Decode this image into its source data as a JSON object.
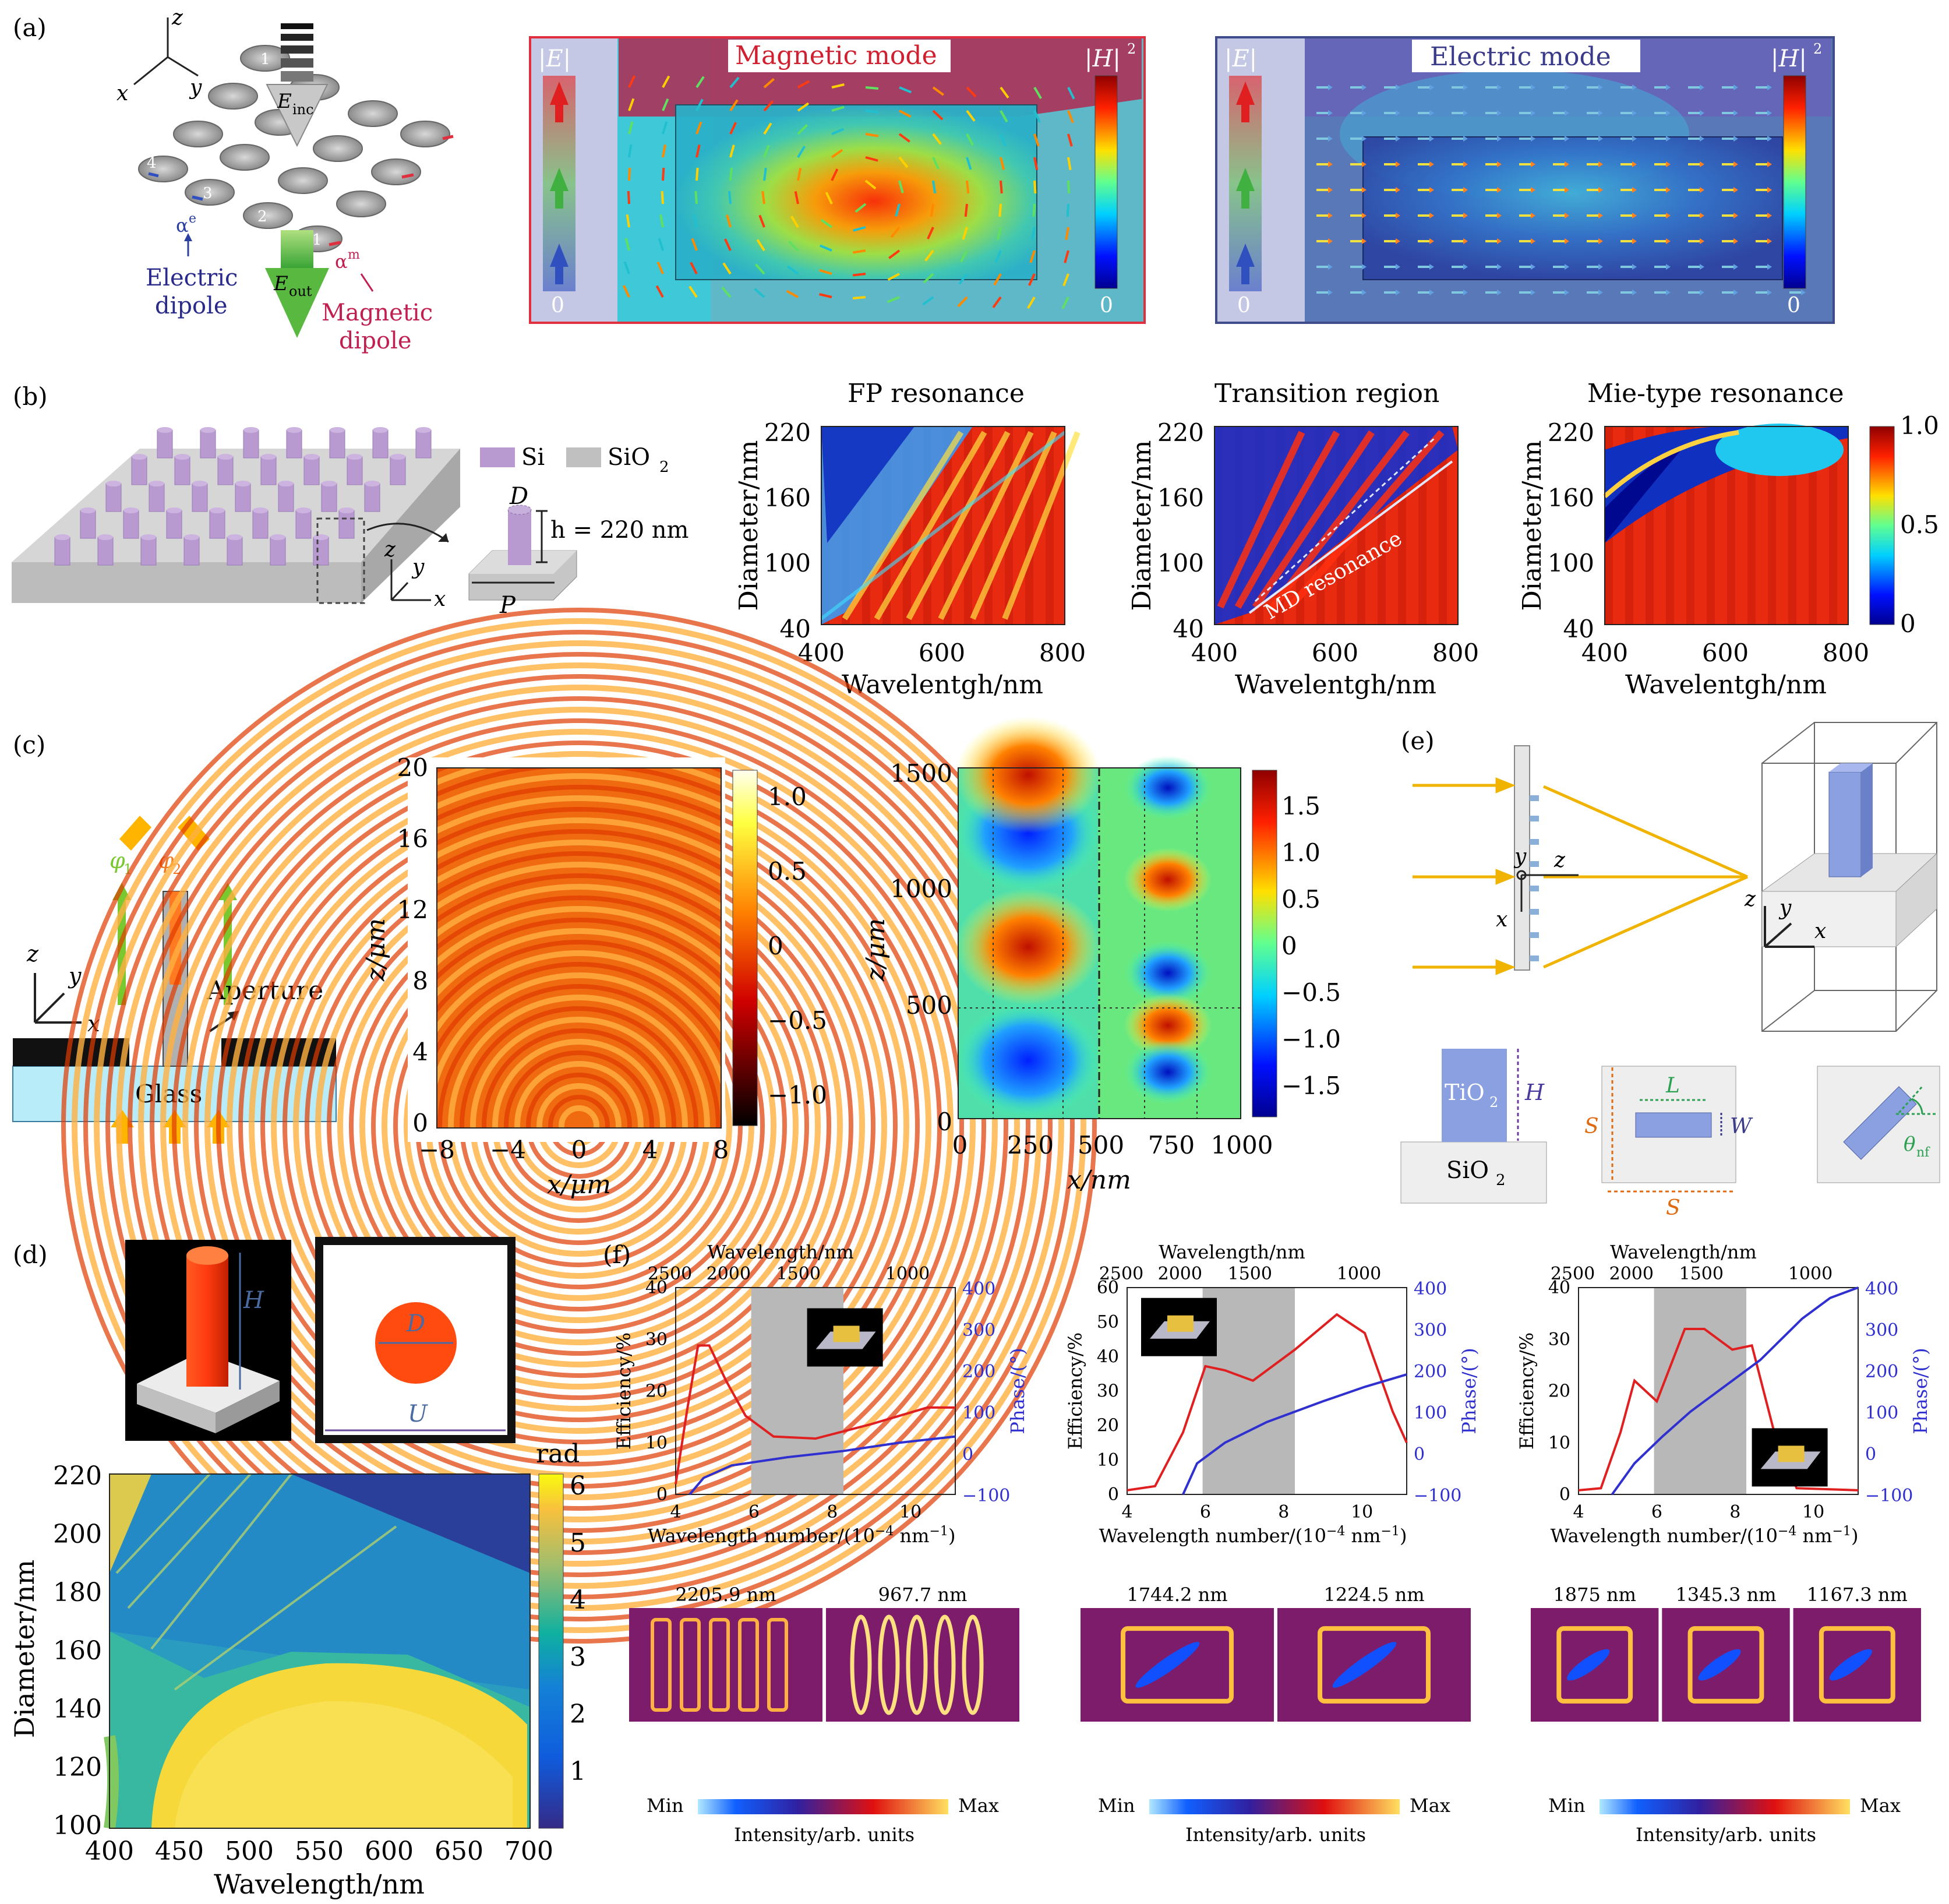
{
  "panel_labels": {
    "a": "(a)",
    "b": "(b)",
    "c": "(c)",
    "d": "(d)",
    "e": "(e)",
    "f": "(f)"
  },
  "a": {
    "axes": {
      "z": "z",
      "x": "x",
      "y": "y"
    },
    "einc": "E",
    "einc_sub": "inc",
    "eout": "E",
    "eout_sub": "out",
    "alpha_e": "α",
    "alpha_e_sup": "e",
    "alpha_m": "α",
    "alpha_m_sup": "m",
    "electric_dipole_1": "Electric",
    "electric_dipole_2": "dipole",
    "magnetic_dipole_1": "Magnetic",
    "magnetic_dipole_2": "dipole",
    "disk_numbers": [
      "1",
      "2",
      "3",
      "4",
      "1"
    ],
    "mode1_title": "Magnetic mode",
    "mode2_title": "Electric mode",
    "E_label": "|E|",
    "H_label": "|H|",
    "H_sup": "2",
    "zero": "0"
  },
  "b": {
    "legend_si": "Si",
    "legend_sio2": "SiO",
    "legend_sio2_sub": "2",
    "D": "D",
    "h_label": "h = 220 nm",
    "P": "P",
    "axes": {
      "z": "z",
      "y": "y",
      "x": "x"
    },
    "maps": [
      {
        "title": "FP resonance"
      },
      {
        "title": "Transition region",
        "annotation": "MD resonance"
      },
      {
        "title": "Mie-type resonance"
      }
    ],
    "ylabel": "Diameter/nm",
    "xlabel": "Wavelentgh/nm",
    "yticks": [
      "220",
      "160",
      "100",
      "40"
    ],
    "xticks": [
      "400",
      "600",
      "800"
    ],
    "colorbar": [
      "1.0",
      "0.5",
      "0"
    ]
  },
  "c": {
    "phi1": "φ",
    "phi1_sub": "1",
    "phi2": "φ",
    "phi2_sub": "2",
    "aperture": "Aperture",
    "glass": "Glass",
    "axes": {
      "z": "z",
      "y": "y",
      "x": "x"
    },
    "map1": {
      "ylabel": "z/μm",
      "xlabel": "x/μm",
      "yticks": [
        "20",
        "16",
        "12",
        "8",
        "4",
        "0"
      ],
      "xticks": [
        "−8",
        "−4",
        "0",
        "4",
        "8"
      ],
      "colorbar": [
        "1.0",
        "0.5",
        "0",
        "−0.5",
        "−1.0"
      ]
    },
    "map2": {
      "ylabel": "z/μm",
      "xlabel": "x/nm",
      "yticks": [
        "1500",
        "1000",
        "500",
        "0"
      ],
      "xticks": [
        "0",
        "250",
        "500",
        "750",
        "1000"
      ],
      "colorbar": [
        "1.5",
        "1.0",
        "0.5",
        "0",
        "−0.5",
        "−1.0",
        "−1.5"
      ]
    }
  },
  "d": {
    "H": "H",
    "D": "D",
    "U": "U",
    "ylabel": "Diameter/nm",
    "xlabel": "Wavelength/nm",
    "yticks": [
      "220",
      "200",
      "180",
      "160",
      "140",
      "120",
      "100"
    ],
    "xticks": [
      "400",
      "450",
      "500",
      "550",
      "600",
      "650",
      "700"
    ],
    "colorbar_title": "rad",
    "colorbar": [
      "6",
      "5",
      "4",
      "3",
      "2",
      "1"
    ]
  },
  "e": {
    "axes": {
      "y": "y",
      "z": "z",
      "x": "x"
    },
    "tio2": "TiO",
    "tio2_sub": "2",
    "H": "H",
    "sio2": "SiO",
    "sio2_sub": "2",
    "S": "S",
    "L": "L",
    "W": "W",
    "theta": "θ",
    "theta_sub": "nf"
  },
  "f": {
    "top_label": "Wavelength/nm",
    "xlabel": "Wavelength number/(10",
    "xlabel_sup": "−4",
    "xlabel_end": " nm",
    "xlabel_sup2": "−1",
    "xlabel_close": ")",
    "ylabel_left": "Efficiency/%",
    "ylabel_right": "Phase/(°)",
    "top_ticks": [
      "2500",
      "2000",
      "1500",
      "1000"
    ],
    "xticks": [
      "4",
      "6",
      "8",
      "10"
    ],
    "right_ticks": [
      "400",
      "300",
      "200",
      "100",
      "0",
      "−100"
    ],
    "plots": [
      {
        "left_ticks": [
          "40",
          "30",
          "20",
          "10",
          "0"
        ]
      },
      {
        "left_ticks": [
          "60",
          "50",
          "40",
          "30",
          "20",
          "10",
          "0"
        ]
      },
      {
        "left_ticks": [
          "40",
          "30",
          "20",
          "10",
          "0"
        ]
      }
    ],
    "fields": [
      {
        "labels": [
          "2205.9 nm",
          "967.7 nm"
        ]
      },
      {
        "labels": [
          "1744.2 nm",
          "1224.5 nm"
        ]
      },
      {
        "labels": [
          "1875 nm",
          "1345.3 nm",
          "1167.3 nm"
        ]
      }
    ],
    "min": "Min",
    "max": "Max",
    "intensity": "Intensity/arb. units"
  }
}
